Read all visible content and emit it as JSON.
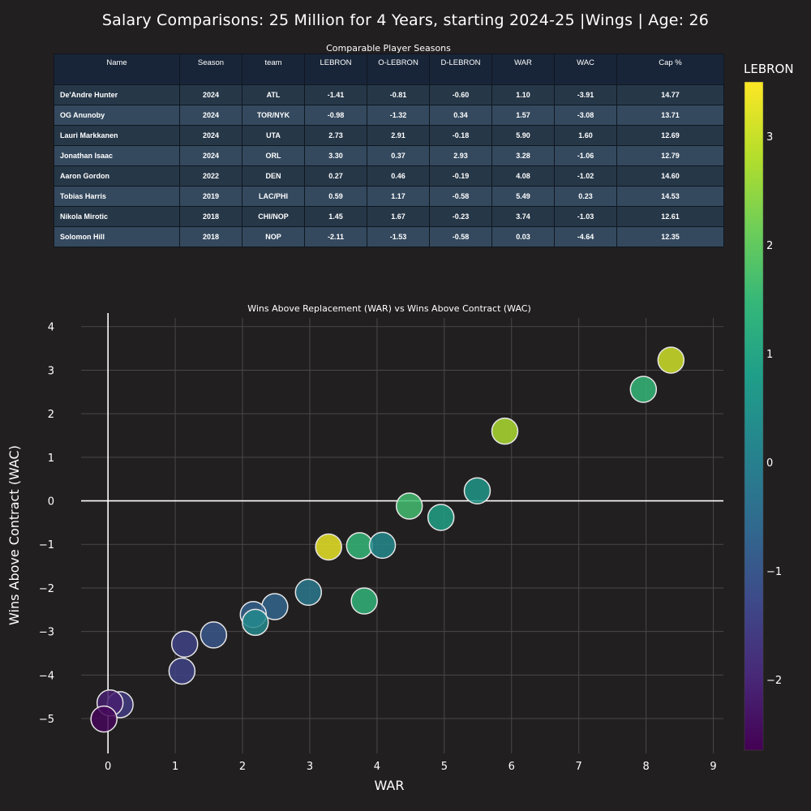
{
  "title": "Salary Comparisons: 25 Million for 4 Years, starting 2024-25 |Wings | Age: 26",
  "table": {
    "title": "Comparable Player Seasons",
    "columns": [
      "Name",
      "Season",
      "team",
      "LEBRON",
      "O-LEBRON",
      "D-LEBRON",
      "WAR",
      "WAC",
      "Cap %"
    ],
    "rows": [
      [
        "De'Andre Hunter",
        "2024",
        "ATL",
        "-1.41",
        "-0.81",
        "-0.60",
        "1.10",
        "-3.91",
        "14.77"
      ],
      [
        "OG Anunoby",
        "2024",
        "TOR/NYK",
        "-0.98",
        "-1.32",
        "0.34",
        "1.57",
        "-3.08",
        "13.71"
      ],
      [
        "Lauri Markkanen",
        "2024",
        "UTA",
        "2.73",
        "2.91",
        "-0.18",
        "5.90",
        "1.60",
        "12.69"
      ],
      [
        "Jonathan Isaac",
        "2024",
        "ORL",
        "3.30",
        "0.37",
        "2.93",
        "3.28",
        "-1.06",
        "12.79"
      ],
      [
        "Aaron Gordon",
        "2022",
        "DEN",
        "0.27",
        "0.46",
        "-0.19",
        "4.08",
        "-1.02",
        "14.60"
      ],
      [
        "Tobias Harris",
        "2019",
        "LAC/PHI",
        "0.59",
        "1.17",
        "-0.58",
        "5.49",
        "0.23",
        "14.53"
      ],
      [
        "Nikola Mirotic",
        "2018",
        "CHI/NOP",
        "1.45",
        "1.67",
        "-0.23",
        "3.74",
        "-1.03",
        "12.61"
      ],
      [
        "Solomon Hill",
        "2018",
        "NOP",
        "-2.11",
        "-1.53",
        "-0.58",
        "0.03",
        "-4.64",
        "12.35"
      ]
    ]
  },
  "chart_data": {
    "type": "scatter",
    "title": "Wins Above Replacement (WAR) vs Wins Above Contract (WAC)",
    "xlabel": "WAR",
    "ylabel": "Wins Above Contract (WAC)",
    "xlim": [
      -0.4,
      9.15
    ],
    "ylim": [
      -5.8,
      4.2
    ],
    "x_ticks": [
      0,
      1,
      2,
      3,
      4,
      5,
      6,
      7,
      8,
      9
    ],
    "y_ticks": [
      4,
      3,
      2,
      1,
      0,
      -1,
      -2,
      -3,
      -4,
      -5
    ],
    "grid": true,
    "colorbar": {
      "title": "LEBRON",
      "colorscale": "Viridis",
      "range": [
        -2.65,
        3.5
      ],
      "ticks": [
        3,
        2,
        1,
        0,
        -1,
        -2
      ]
    },
    "points": [
      {
        "x": 8.37,
        "y": 3.23,
        "c": 3.05
      },
      {
        "x": 7.96,
        "y": 2.56,
        "c": 1.45
      },
      {
        "x": 5.9,
        "y": 1.6,
        "c": 2.73
      },
      {
        "x": 5.49,
        "y": 0.23,
        "c": 0.59
      },
      {
        "x": 4.48,
        "y": -0.12,
        "c": 1.62
      },
      {
        "x": 4.95,
        "y": -0.38,
        "c": 0.85
      },
      {
        "x": 3.28,
        "y": -1.06,
        "c": 3.3
      },
      {
        "x": 3.74,
        "y": -1.03,
        "c": 1.45
      },
      {
        "x": 4.08,
        "y": -1.02,
        "c": 0.27
      },
      {
        "x": 2.98,
        "y": -2.1,
        "c": -0.15
      },
      {
        "x": 3.81,
        "y": -2.3,
        "c": 1.4
      },
      {
        "x": 2.48,
        "y": -2.43,
        "c": -0.65
      },
      {
        "x": 2.16,
        "y": -2.61,
        "c": -0.75
      },
      {
        "x": 2.19,
        "y": -2.79,
        "c": 0.25
      },
      {
        "x": 1.57,
        "y": -3.08,
        "c": -0.98
      },
      {
        "x": 1.14,
        "y": -3.29,
        "c": -1.4
      },
      {
        "x": 1.1,
        "y": -3.91,
        "c": -1.41
      },
      {
        "x": 0.18,
        "y": -4.68,
        "c": -1.55
      },
      {
        "x": 0.03,
        "y": -4.64,
        "c": -2.11
      },
      {
        "x": -0.06,
        "y": -5.01,
        "c": -2.55
      }
    ]
  }
}
